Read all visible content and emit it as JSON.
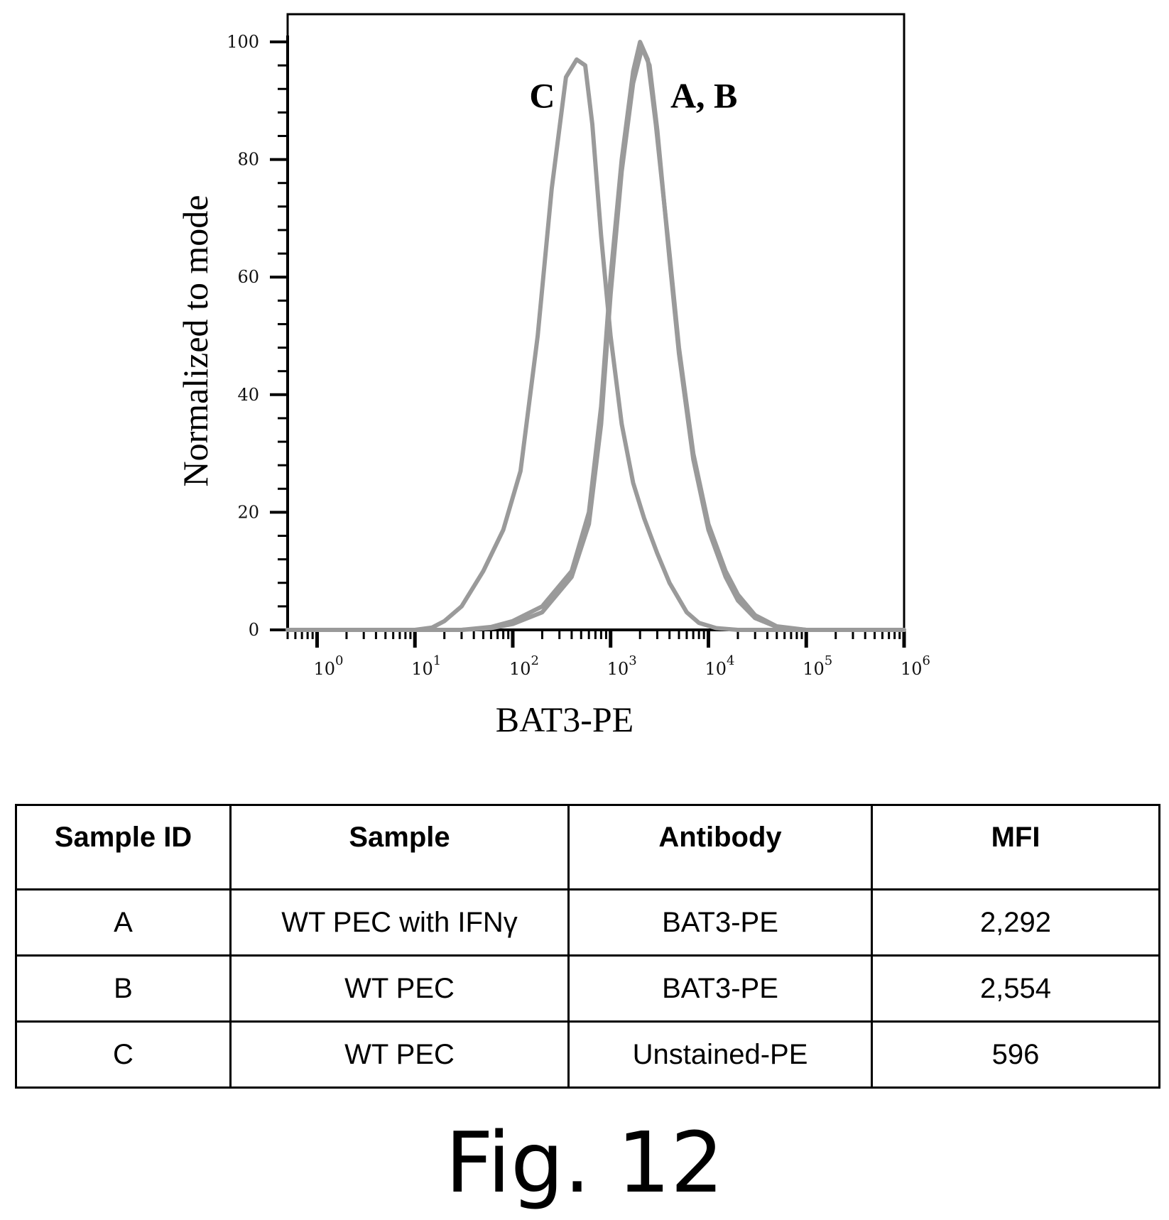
{
  "chart_data": {
    "type": "line",
    "xlabel": "BAT3-PE",
    "ylabel": "Normalized to mode",
    "x_scale": "log",
    "xlim": [
      0.5,
      1000000
    ],
    "ylim": [
      0,
      100
    ],
    "x_ticks": [
      {
        "value": 1,
        "base": "10",
        "exp": "0"
      },
      {
        "value": 10,
        "base": "10",
        "exp": "1"
      },
      {
        "value": 100,
        "base": "10",
        "exp": "2"
      },
      {
        "value": 1000,
        "base": "10",
        "exp": "3"
      },
      {
        "value": 10000,
        "base": "10",
        "exp": "4"
      },
      {
        "value": 100000,
        "base": "10",
        "exp": "5"
      },
      {
        "value": 1000000,
        "base": "10",
        "exp": "6"
      }
    ],
    "y_ticks": [
      "0",
      "20",
      "40",
      "60",
      "80",
      "100"
    ],
    "peak_labels": [
      {
        "text": "C",
        "x": 200,
        "y": 91
      },
      {
        "text": "A, B",
        "x": 9000,
        "y": 91
      }
    ],
    "series": [
      {
        "name": "A",
        "x": [
          0.5,
          10,
          30,
          60,
          100,
          200,
          400,
          600,
          800,
          1000,
          1300,
          1700,
          2100,
          2500,
          3000,
          4000,
          5000,
          7000,
          10000,
          15000,
          20000,
          30000,
          50000,
          100000,
          1000000
        ],
        "y": [
          0,
          0,
          0,
          0.3,
          1,
          3,
          9,
          18,
          35,
          57,
          78,
          93,
          99,
          96,
          85,
          63,
          47,
          29,
          17,
          9,
          5,
          2,
          0.5,
          0,
          0
        ]
      },
      {
        "name": "B",
        "x": [
          0.5,
          10,
          30,
          60,
          100,
          200,
          400,
          600,
          800,
          1000,
          1300,
          1700,
          2000,
          2400,
          2900,
          4000,
          5000,
          7000,
          10000,
          15000,
          20000,
          30000,
          50000,
          100000,
          1000000
        ],
        "y": [
          0,
          0,
          0,
          0.5,
          1.5,
          4,
          10,
          20,
          38,
          60,
          80,
          95,
          100,
          97,
          86,
          64,
          48,
          30,
          18,
          10,
          6,
          2.5,
          0.6,
          0,
          0
        ]
      },
      {
        "name": "C",
        "x": [
          0.5,
          10,
          15,
          20,
          30,
          50,
          80,
          120,
          180,
          250,
          350,
          450,
          550,
          650,
          800,
          1000,
          1300,
          1700,
          2200,
          3000,
          4000,
          6000,
          8000,
          12000,
          20000,
          100000,
          1000000
        ],
        "y": [
          0,
          0,
          0.4,
          1.5,
          4,
          10,
          17,
          27,
          50,
          75,
          94,
          97,
          96,
          86,
          67,
          50,
          35,
          25,
          19,
          13,
          8,
          3,
          1.2,
          0.3,
          0,
          0,
          0
        ]
      }
    ]
  },
  "table": {
    "headers": [
      "Sample  ID",
      "Sample",
      "Antibody",
      "MFI"
    ],
    "rows": [
      [
        "A",
        "WT PEC with IFNγ",
        "BAT3-PE",
        "2,292"
      ],
      [
        "B",
        "WT PEC",
        "BAT3-PE",
        "2,554"
      ],
      [
        "C",
        "WT PEC",
        "Unstained-PE",
        "596"
      ]
    ]
  },
  "caption": "Fig. 12"
}
